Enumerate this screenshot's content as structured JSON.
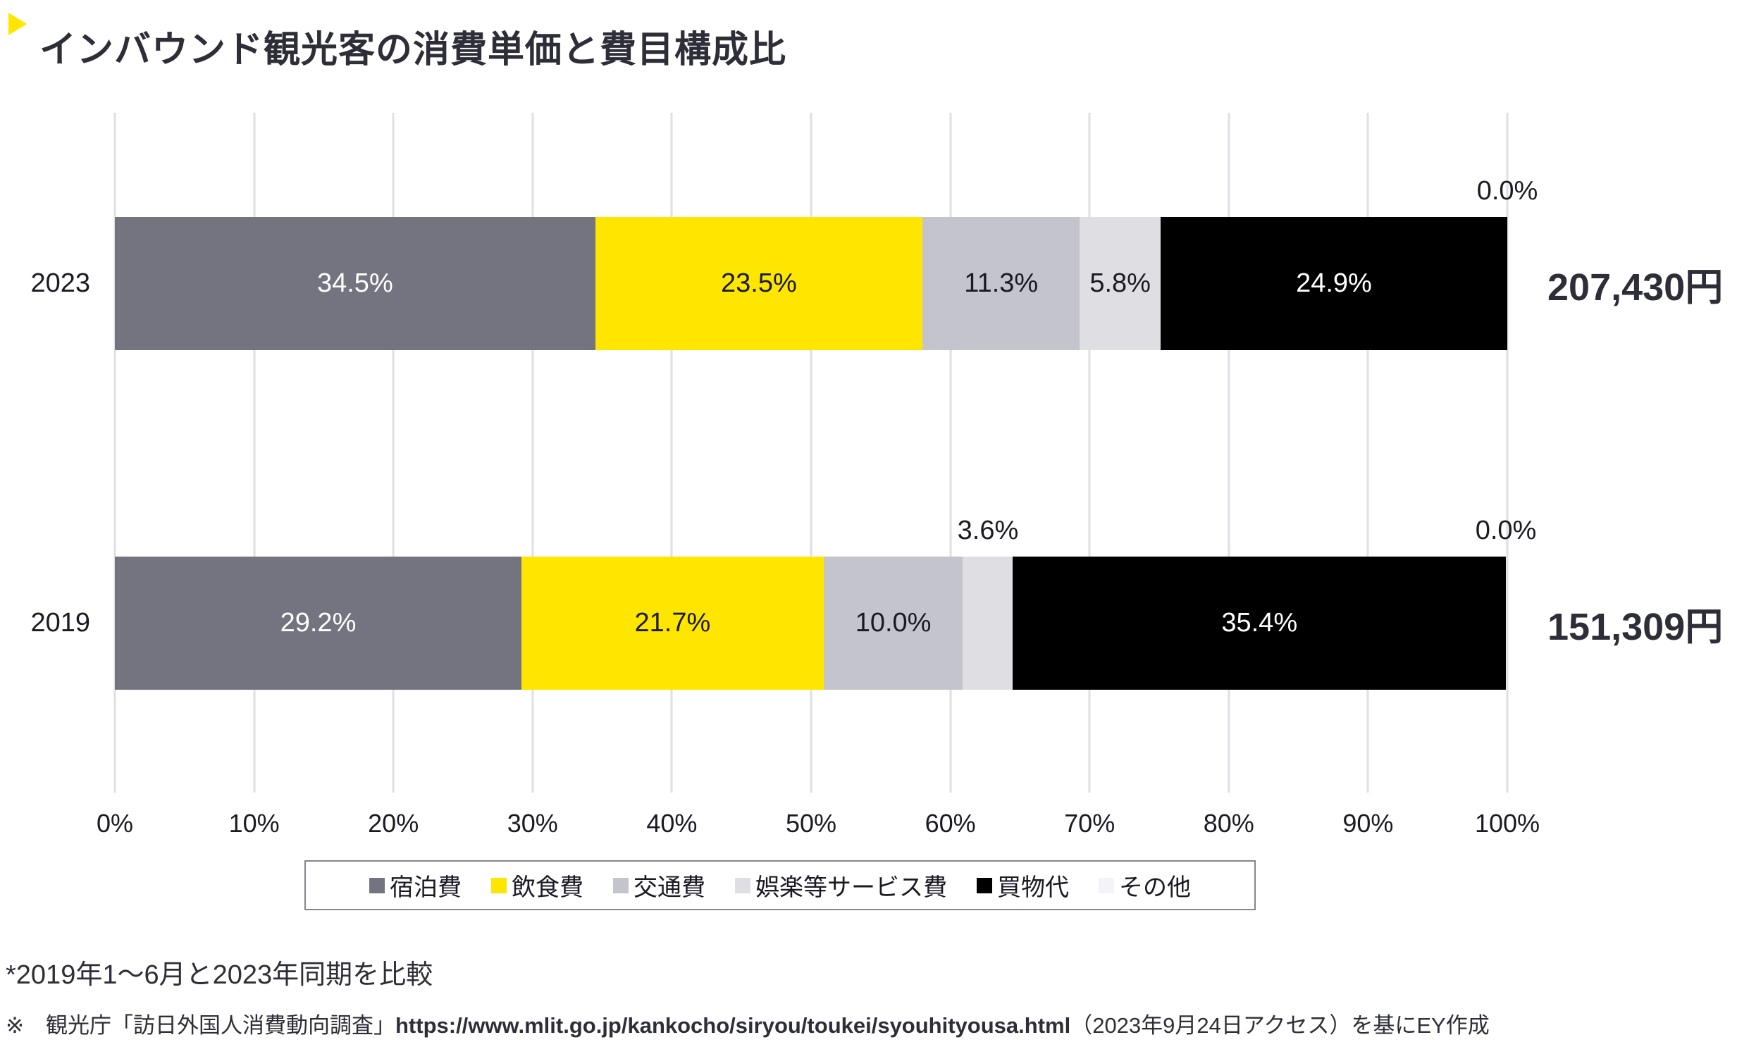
{
  "title": {
    "text": "インバウンド観光客の消費単価と費目構成比"
  },
  "chart_data": {
    "type": "bar",
    "stacked": true,
    "orientation": "horizontal",
    "title": "インバウンド観光客の消費単価と費目構成比",
    "categories": [
      "2023",
      "2019"
    ],
    "series": [
      {
        "name": "宿泊費",
        "color": "#747480",
        "label_color": "#FFFFFF",
        "values": [
          34.5,
          29.2
        ]
      },
      {
        "name": "飲食費",
        "color": "#FFE600",
        "label_color": "#1A1A24",
        "values": [
          23.5,
          21.7
        ]
      },
      {
        "name": "交通費",
        "color": "#C4C4CD",
        "label_color": "#1A1A24",
        "values": [
          11.3,
          10.0
        ]
      },
      {
        "name": "娯楽等サービス費",
        "color": "#DEDEE3",
        "label_color": "#1A1A24",
        "values": [
          5.8,
          3.6
        ]
      },
      {
        "name": "買物代",
        "color": "#000000",
        "label_color": "#FFFFFF",
        "values": [
          24.9,
          35.4
        ]
      },
      {
        "name": "その他",
        "color": "#F4F4F8",
        "label_color": "#1A1A24",
        "values": [
          0.0,
          0.0
        ]
      }
    ],
    "segment_labels": [
      [
        "34.5%",
        "23.5%",
        "11.3%",
        "5.8%",
        "24.9%",
        "0.0%"
      ],
      [
        "29.2%",
        "21.7%",
        "10.0%",
        "3.6%",
        "35.4%",
        "0.0%"
      ]
    ],
    "label_placement": [
      [
        "inside",
        "inside",
        "inside",
        "inside",
        "inside",
        "above"
      ],
      [
        "inside",
        "inside",
        "inside",
        "above",
        "inside",
        "above"
      ]
    ],
    "totals": [
      "207,430円",
      "151,309円"
    ],
    "x_ticks": [
      "0%",
      "10%",
      "20%",
      "30%",
      "40%",
      "50%",
      "60%",
      "70%",
      "80%",
      "90%",
      "100%"
    ],
    "x_range": [
      0,
      100
    ],
    "grid": true,
    "legend_position": "bottom"
  },
  "footnotes": {
    "note1": "*2019年1〜6月と2023年同期を比較",
    "note2_prefix": "※　観光庁「訪日外国人消費動向調査」",
    "note2_url": "https://www.mlit.go.jp/kankocho/siryou/toukei/syouhityousa.html",
    "note2_suffix": "（2023年9月24日アクセス）を基にEY作成"
  }
}
